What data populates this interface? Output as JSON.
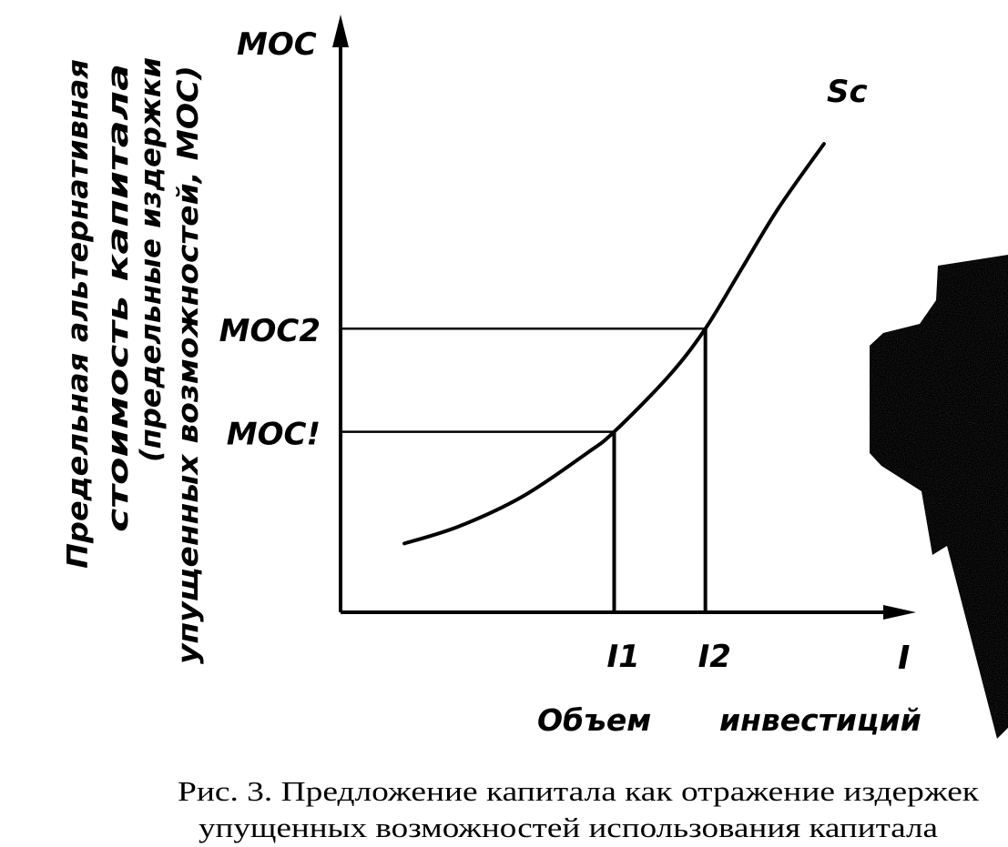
{
  "colors": {
    "ink": "#000000",
    "paper": "#ffffff"
  },
  "chart_data": {
    "type": "line",
    "title": "",
    "ylabel_top": "MOC",
    "ylabel_lines": [
      "Предельная альтернативная",
      "стоимость капитала",
      "(предельные издержки",
      "упущенных возможностей, МОС)"
    ],
    "xlabel_end": "I",
    "xlabel_words": [
      "Объем",
      "инвестиций"
    ],
    "series": [
      {
        "name": "Sc",
        "x": [
          0.7,
          1.3,
          2.0,
          2.7,
          3.0,
          3.6,
          4.0,
          4.4,
          4.8,
          5.3
        ],
        "y": [
          0.8,
          1.0,
          1.35,
          1.85,
          2.1,
          2.75,
          3.3,
          4.0,
          4.7,
          5.45
        ]
      }
    ],
    "markers": [
      {
        "x": 3.0,
        "y": 2.1,
        "x_label": "I1",
        "y_label": "MOC!"
      },
      {
        "x": 4.0,
        "y": 3.3,
        "x_label": "I2",
        "y_label": "MOC2"
      }
    ],
    "xlim": [
      0,
      6.1
    ],
    "ylim": [
      0,
      6.7
    ],
    "grid": false,
    "legend": "none"
  },
  "caption": {
    "line1": "Рис. 3. Предложение капитала как отражение издержек",
    "line2": "упущенных возможностей использования капитала"
  }
}
